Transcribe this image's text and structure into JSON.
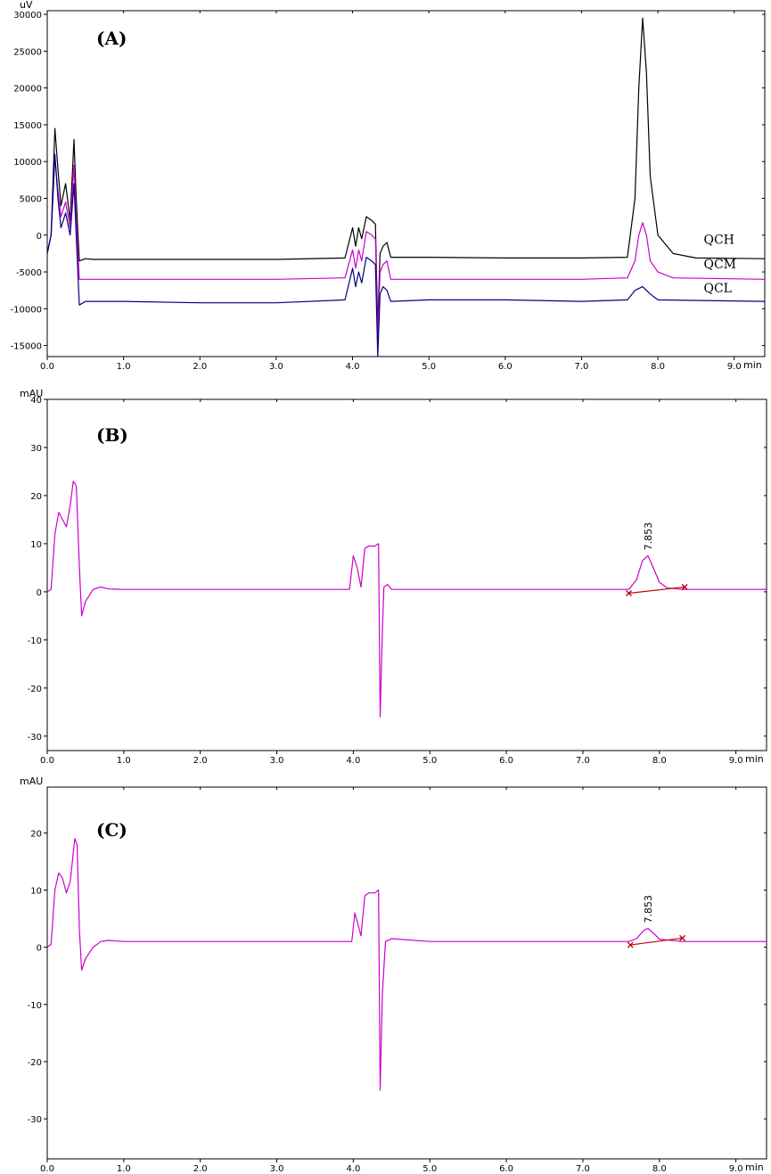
{
  "chart_data": [
    {
      "type": "line",
      "panel_label": "(A)",
      "y_unit": "uV",
      "x_unit": "min",
      "xlim": [
        0,
        9.4
      ],
      "ylim": [
        -16500,
        30500
      ],
      "xticks": [
        0,
        1,
        2,
        3,
        4,
        5,
        6,
        7,
        8,
        9
      ],
      "xtick_labels": [
        "0.0",
        "1.0",
        "2.0",
        "3.0",
        "4.0",
        "5.0",
        "6.0",
        "7.0",
        "8.0",
        "9.0"
      ],
      "yticks": [
        -15000,
        -10000,
        -5000,
        0,
        5000,
        10000,
        15000,
        20000,
        25000,
        30000
      ],
      "ytick_labels": [
        "-15000",
        "-10000",
        "-5000",
        "0",
        "5000",
        "10000",
        "15000",
        "20000",
        "25000",
        "30000"
      ],
      "grid": false,
      "series": [
        {
          "name": "QCH",
          "color": "#000000",
          "points": [
            [
              0,
              -2500
            ],
            [
              0.05,
              0
            ],
            [
              0.1,
              14500
            ],
            [
              0.14,
              9000
            ],
            [
              0.18,
              4000
            ],
            [
              0.24,
              7000
            ],
            [
              0.3,
              2000
            ],
            [
              0.35,
              13000
            ],
            [
              0.38,
              5000
            ],
            [
              0.42,
              -3500
            ],
            [
              0.5,
              -3200
            ],
            [
              0.6,
              -3300
            ],
            [
              1.0,
              -3300
            ],
            [
              2.0,
              -3300
            ],
            [
              3.0,
              -3300
            ],
            [
              3.9,
              -3100
            ],
            [
              4.0,
              1000
            ],
            [
              4.04,
              -1500
            ],
            [
              4.08,
              1000
            ],
            [
              4.12,
              -500
            ],
            [
              4.18,
              2500
            ],
            [
              4.25,
              2000
            ],
            [
              4.3,
              1500
            ],
            [
              4.33,
              -12500
            ],
            [
              4.36,
              -2500
            ],
            [
              4.4,
              -1500
            ],
            [
              4.45,
              -1000
            ],
            [
              4.5,
              -3000
            ],
            [
              5.0,
              -3000
            ],
            [
              6.0,
              -3100
            ],
            [
              7.0,
              -3100
            ],
            [
              7.6,
              -3000
            ],
            [
              7.7,
              5000
            ],
            [
              7.75,
              20000
            ],
            [
              7.8,
              29500
            ],
            [
              7.85,
              22000
            ],
            [
              7.9,
              8000
            ],
            [
              8.0,
              0
            ],
            [
              8.2,
              -2500
            ],
            [
              8.5,
              -3100
            ],
            [
              9.4,
              -3200
            ]
          ]
        },
        {
          "name": "QCM",
          "color": "#cc00cc",
          "points": [
            [
              0,
              -2500
            ],
            [
              0.05,
              0
            ],
            [
              0.1,
              10500
            ],
            [
              0.14,
              6000
            ],
            [
              0.18,
              2500
            ],
            [
              0.24,
              4500
            ],
            [
              0.3,
              1000
            ],
            [
              0.35,
              9500
            ],
            [
              0.38,
              2500
            ],
            [
              0.42,
              -6000
            ],
            [
              0.5,
              -6000
            ],
            [
              1.0,
              -6000
            ],
            [
              2.0,
              -6000
            ],
            [
              3.0,
              -6000
            ],
            [
              3.9,
              -5800
            ],
            [
              4.0,
              -2000
            ],
            [
              4.04,
              -4500
            ],
            [
              4.08,
              -2000
            ],
            [
              4.12,
              -3500
            ],
            [
              4.18,
              500
            ],
            [
              4.25,
              0
            ],
            [
              4.3,
              -500
            ],
            [
              4.33,
              -14000
            ],
            [
              4.36,
              -5000
            ],
            [
              4.4,
              -4000
            ],
            [
              4.45,
              -3500
            ],
            [
              4.5,
              -6000
            ],
            [
              5.0,
              -6000
            ],
            [
              6.0,
              -6000
            ],
            [
              7.0,
              -6000
            ],
            [
              7.6,
              -5800
            ],
            [
              7.7,
              -3500
            ],
            [
              7.75,
              0
            ],
            [
              7.8,
              1700
            ],
            [
              7.85,
              0
            ],
            [
              7.9,
              -3500
            ],
            [
              8.0,
              -5000
            ],
            [
              8.2,
              -5800
            ],
            [
              9.4,
              -6000
            ]
          ]
        },
        {
          "name": "QCL",
          "color": "#000080",
          "points": [
            [
              0,
              -2500
            ],
            [
              0.05,
              0
            ],
            [
              0.1,
              11000
            ],
            [
              0.14,
              5000
            ],
            [
              0.18,
              1000
            ],
            [
              0.24,
              3000
            ],
            [
              0.3,
              0
            ],
            [
              0.35,
              7000
            ],
            [
              0.38,
              0
            ],
            [
              0.42,
              -9500
            ],
            [
              0.5,
              -9000
            ],
            [
              1.0,
              -9000
            ],
            [
              2.0,
              -9200
            ],
            [
              3.0,
              -9200
            ],
            [
              3.9,
              -8800
            ],
            [
              4.0,
              -4500
            ],
            [
              4.04,
              -7000
            ],
            [
              4.08,
              -5000
            ],
            [
              4.12,
              -6500
            ],
            [
              4.18,
              -3000
            ],
            [
              4.25,
              -3500
            ],
            [
              4.3,
              -4000
            ],
            [
              4.33,
              -16500
            ],
            [
              4.36,
              -8000
            ],
            [
              4.4,
              -7000
            ],
            [
              4.45,
              -7500
            ],
            [
              4.5,
              -9000
            ],
            [
              5.0,
              -8800
            ],
            [
              6.0,
              -8800
            ],
            [
              7.0,
              -9000
            ],
            [
              7.6,
              -8800
            ],
            [
              7.7,
              -7500
            ],
            [
              7.8,
              -7000
            ],
            [
              7.9,
              -8000
            ],
            [
              8.0,
              -8800
            ],
            [
              9.4,
              -9000
            ]
          ]
        }
      ],
      "annotations": [
        {
          "text": "QCH",
          "x": 8.6,
          "y": -1200
        },
        {
          "text": "QCM",
          "x": 8.6,
          "y": -4500
        },
        {
          "text": "QCL",
          "x": 8.6,
          "y": -7800
        }
      ]
    },
    {
      "type": "line",
      "panel_label": "(B)",
      "y_unit": "mAU",
      "x_unit": "min",
      "xlim": [
        0,
        9.4
      ],
      "ylim": [
        -33,
        40
      ],
      "xticks": [
        0,
        1,
        2,
        3,
        4,
        5,
        6,
        7,
        8,
        9
      ],
      "xtick_labels": [
        "0.0",
        "1.0",
        "2.0",
        "3.0",
        "4.0",
        "5.0",
        "6.0",
        "7.0",
        "8.0",
        "9.0"
      ],
      "yticks": [
        -30,
        -20,
        -10,
        0,
        10,
        20,
        30,
        40
      ],
      "ytick_labels": [
        "-30",
        "-20",
        "-10",
        "0",
        "10",
        "20",
        "30",
        "40"
      ],
      "grid": false,
      "series": [
        {
          "color": "#cc00cc",
          "points": [
            [
              0,
              0
            ],
            [
              0.05,
              0.5
            ],
            [
              0.1,
              12
            ],
            [
              0.15,
              16.5
            ],
            [
              0.2,
              15
            ],
            [
              0.25,
              13.5
            ],
            [
              0.3,
              18
            ],
            [
              0.34,
              23
            ],
            [
              0.38,
              22
            ],
            [
              0.42,
              5
            ],
            [
              0.45,
              -5
            ],
            [
              0.5,
              -2
            ],
            [
              0.6,
              0.5
            ],
            [
              0.7,
              1
            ],
            [
              0.8,
              0.6
            ],
            [
              1.0,
              0.5
            ],
            [
              2.0,
              0.5
            ],
            [
              3.0,
              0.5
            ],
            [
              3.95,
              0.5
            ],
            [
              4.0,
              7.5
            ],
            [
              4.05,
              5
            ],
            [
              4.1,
              1
            ],
            [
              4.15,
              9
            ],
            [
              4.2,
              9.5
            ],
            [
              4.28,
              9.5
            ],
            [
              4.33,
              10
            ],
            [
              4.35,
              -26
            ],
            [
              4.38,
              -8
            ],
            [
              4.4,
              1
            ],
            [
              4.45,
              1.5
            ],
            [
              4.5,
              0.5
            ],
            [
              5.0,
              0.5
            ],
            [
              6.0,
              0.5
            ],
            [
              7.0,
              0.5
            ],
            [
              7.6,
              0.5
            ],
            [
              7.7,
              2.5
            ],
            [
              7.78,
              6.5
            ],
            [
              7.85,
              7.5
            ],
            [
              7.92,
              5
            ],
            [
              8.0,
              2
            ],
            [
              8.1,
              0.8
            ],
            [
              8.3,
              0.5
            ],
            [
              9.4,
              0.5
            ]
          ]
        }
      ],
      "peak_label": {
        "text": "7.853",
        "x": 7.853,
        "y": 7.5
      },
      "baseline_marks": {
        "start": [
          7.6,
          -0.3
        ],
        "end": [
          8.33,
          1.0
        ],
        "color": "#c00000"
      }
    },
    {
      "type": "line",
      "panel_label": "(C)",
      "y_unit": "mAU",
      "x_unit": "min",
      "xlim": [
        0,
        9.4
      ],
      "ylim": [
        -37,
        28
      ],
      "xticks": [
        0,
        1,
        2,
        3,
        4,
        5,
        6,
        7,
        8,
        9
      ],
      "xtick_labels": [
        "0.0",
        "1.0",
        "2.0",
        "3.0",
        "4.0",
        "5.0",
        "6.0",
        "7.0",
        "8.0",
        "9.0"
      ],
      "yticks": [
        -30,
        -20,
        -10,
        0,
        10,
        20
      ],
      "ytick_labels": [
        "-30",
        "-20",
        "-10",
        "0",
        "10",
        "20"
      ],
      "grid": false,
      "series": [
        {
          "color": "#cc00cc",
          "points": [
            [
              0,
              0
            ],
            [
              0.05,
              0.5
            ],
            [
              0.1,
              10
            ],
            [
              0.15,
              13
            ],
            [
              0.2,
              12
            ],
            [
              0.25,
              9.5
            ],
            [
              0.3,
              11.5
            ],
            [
              0.36,
              19
            ],
            [
              0.39,
              18
            ],
            [
              0.42,
              3
            ],
            [
              0.45,
              -4
            ],
            [
              0.5,
              -2
            ],
            [
              0.6,
              0
            ],
            [
              0.7,
              1
            ],
            [
              0.8,
              1.2
            ],
            [
              1.0,
              1
            ],
            [
              2.0,
              1
            ],
            [
              3.0,
              1
            ],
            [
              3.98,
              1
            ],
            [
              4.02,
              6
            ],
            [
              4.06,
              4
            ],
            [
              4.1,
              2
            ],
            [
              4.15,
              9
            ],
            [
              4.2,
              9.5
            ],
            [
              4.28,
              9.5
            ],
            [
              4.33,
              10
            ],
            [
              4.35,
              -25
            ],
            [
              4.38,
              -8
            ],
            [
              4.42,
              1
            ],
            [
              4.5,
              1.5
            ],
            [
              5.0,
              1
            ],
            [
              6.0,
              1
            ],
            [
              7.0,
              1
            ],
            [
              7.6,
              1
            ],
            [
              7.7,
              1.5
            ],
            [
              7.8,
              3
            ],
            [
              7.85,
              3.3
            ],
            [
              7.92,
              2.5
            ],
            [
              8.0,
              1.4
            ],
            [
              8.3,
              1
            ],
            [
              9.4,
              1
            ]
          ]
        }
      ],
      "peak_label": {
        "text": "7.853",
        "x": 7.853,
        "y": 3.3
      },
      "baseline_marks": {
        "start": [
          7.62,
          0.4
        ],
        "end": [
          8.3,
          1.6
        ],
        "color": "#c00000"
      }
    }
  ]
}
